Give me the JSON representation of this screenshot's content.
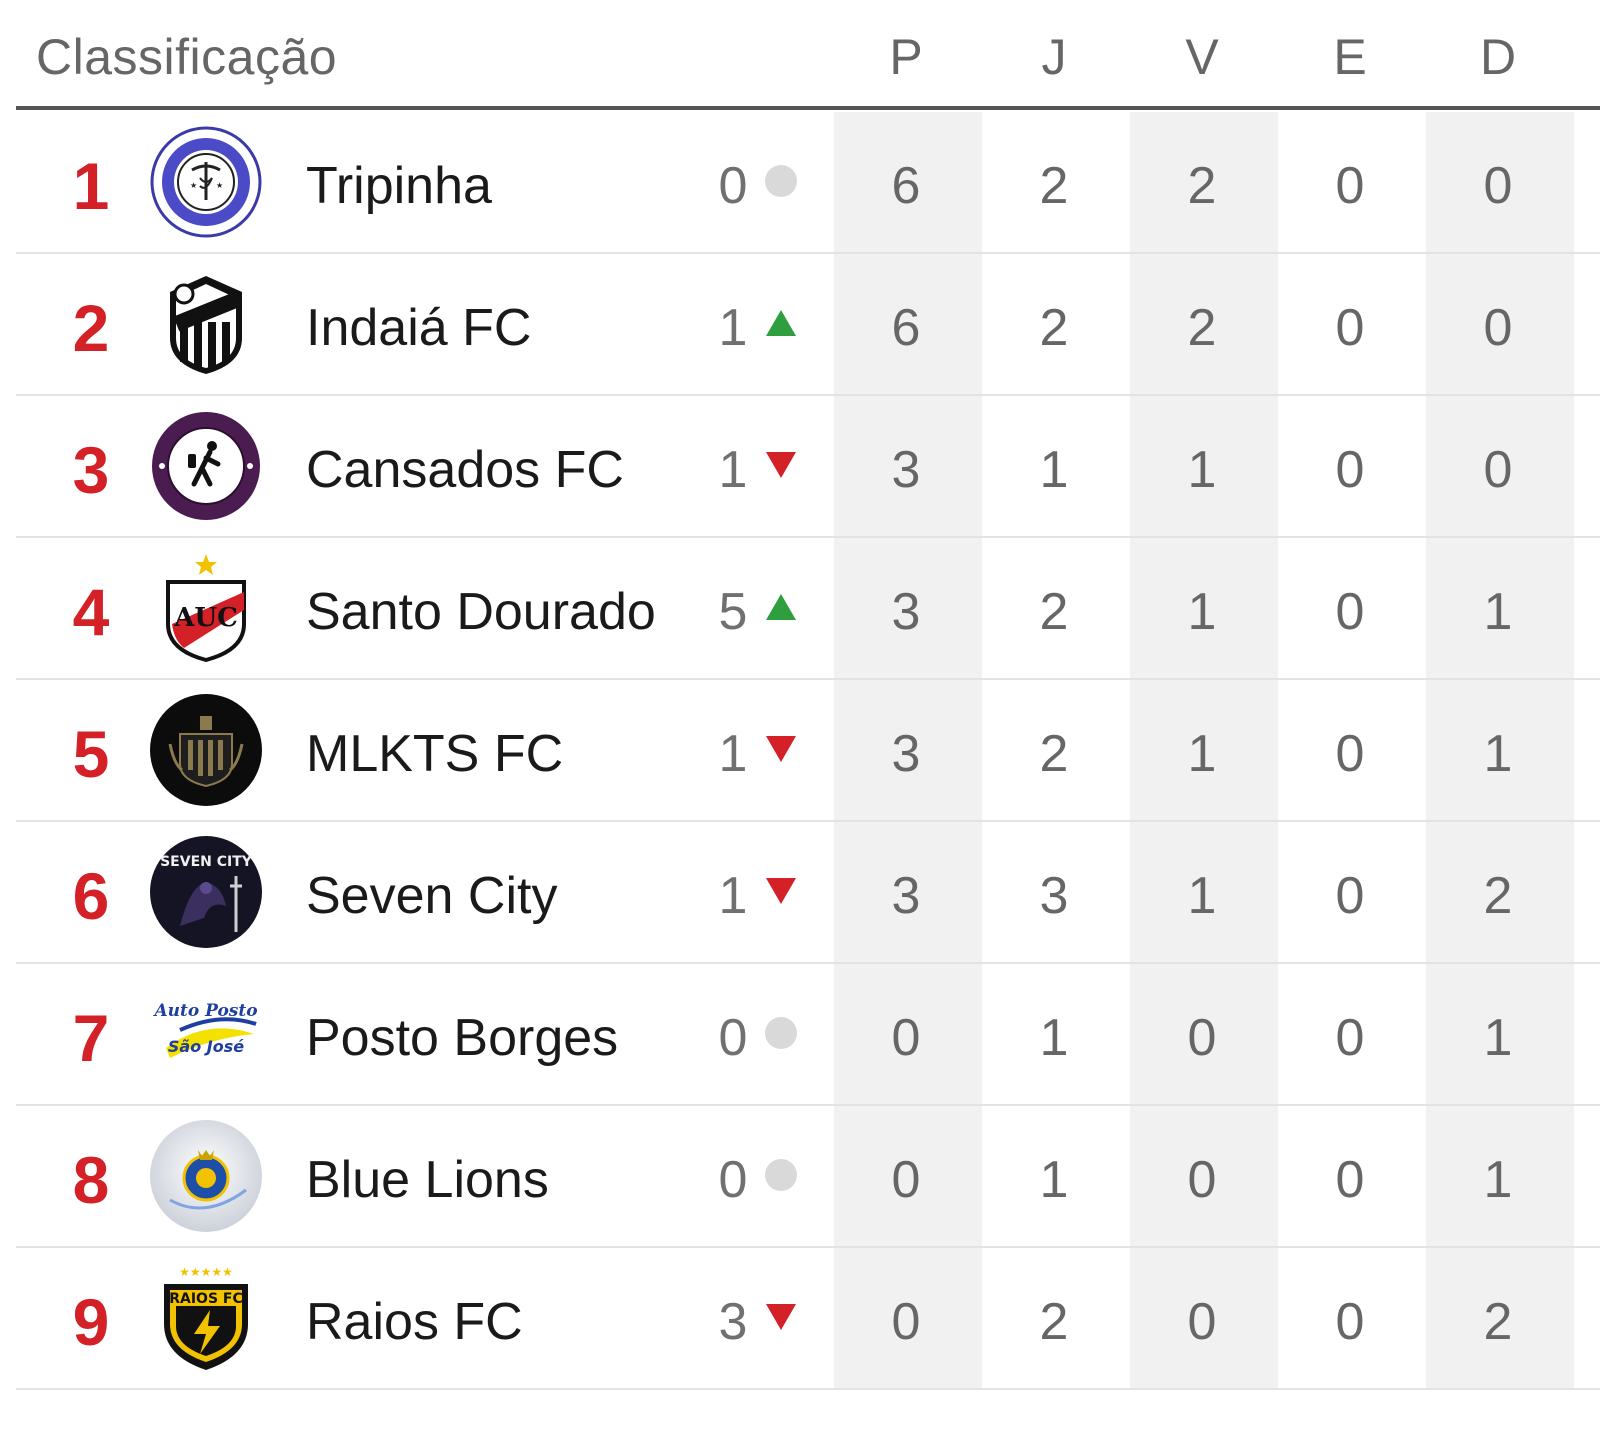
{
  "header": {
    "title": "Classificação",
    "columns": [
      "P",
      "J",
      "V",
      "E",
      "D"
    ]
  },
  "colors": {
    "position": "#d42027",
    "up": "#2e9e3f",
    "down": "#d42027",
    "same": "#d9d9d9",
    "stripe": "#f1f1f1"
  },
  "rows": [
    {
      "pos": "1",
      "team": "Tripinha",
      "logo_icon": "tripinha-crest-icon",
      "movement": "0",
      "trend": "same",
      "p": "6",
      "j": "2",
      "v": "2",
      "e": "0",
      "d": "0"
    },
    {
      "pos": "2",
      "team": "Indaiá FC",
      "logo_icon": "indaia-fc-crest-icon",
      "movement": "1",
      "trend": "up",
      "p": "6",
      "j": "2",
      "v": "2",
      "e": "0",
      "d": "0"
    },
    {
      "pos": "3",
      "team": "Cansados FC",
      "logo_icon": "cansados-fc-crest-icon",
      "movement": "1",
      "trend": "down",
      "p": "3",
      "j": "1",
      "v": "1",
      "e": "0",
      "d": "0"
    },
    {
      "pos": "4",
      "team": "Santo Dourado",
      "logo_icon": "santo-dourado-crest-icon",
      "movement": "5",
      "trend": "up",
      "p": "3",
      "j": "2",
      "v": "1",
      "e": "0",
      "d": "1"
    },
    {
      "pos": "5",
      "team": "MLKTS FC",
      "logo_icon": "mlkts-fc-crest-icon",
      "movement": "1",
      "trend": "down",
      "p": "3",
      "j": "2",
      "v": "1",
      "e": "0",
      "d": "1"
    },
    {
      "pos": "6",
      "team": "Seven City",
      "logo_icon": "seven-city-crest-icon",
      "movement": "1",
      "trend": "down",
      "p": "3",
      "j": "3",
      "v": "1",
      "e": "0",
      "d": "2"
    },
    {
      "pos": "7",
      "team": "Posto Borges",
      "logo_icon": "posto-borges-crest-icon",
      "movement": "0",
      "trend": "same",
      "p": "0",
      "j": "1",
      "v": "0",
      "e": "0",
      "d": "1"
    },
    {
      "pos": "8",
      "team": "Blue Lions",
      "logo_icon": "blue-lions-crest-icon",
      "movement": "0",
      "trend": "same",
      "p": "0",
      "j": "1",
      "v": "0",
      "e": "0",
      "d": "1"
    },
    {
      "pos": "9",
      "team": "Raios FC",
      "logo_icon": "raios-fc-crest-icon",
      "movement": "3",
      "trend": "down",
      "p": "0",
      "j": "2",
      "v": "0",
      "e": "0",
      "d": "2"
    }
  ]
}
